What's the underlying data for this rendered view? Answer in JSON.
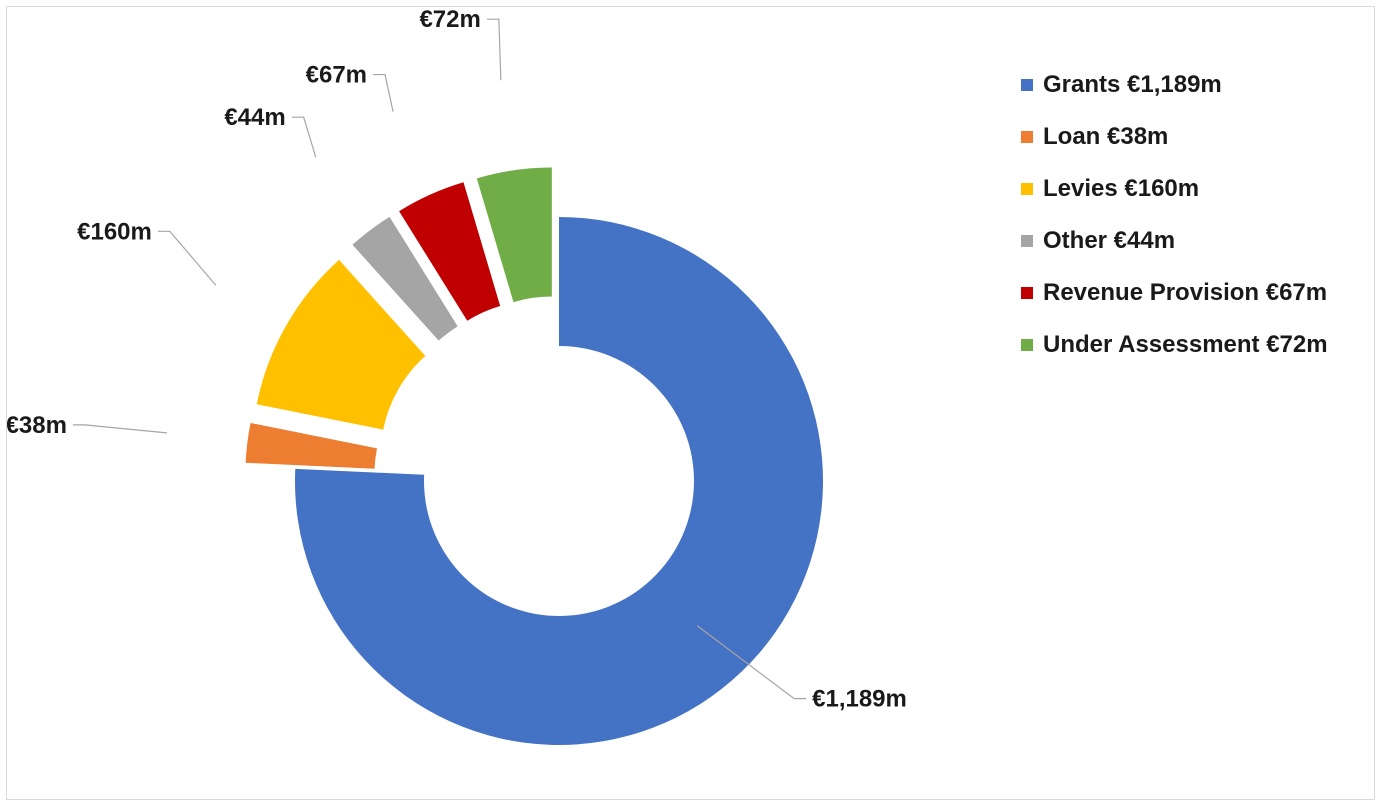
{
  "chart_data": {
    "type": "pie",
    "subtype": "exploded-donut",
    "categories": [
      "Grants",
      "Loan",
      "Levies",
      "Other",
      "Revenue Provision",
      "Under Assessment"
    ],
    "values": [
      1189,
      38,
      160,
      44,
      67,
      72
    ],
    "unit": "€m",
    "data_labels": [
      "€1,189m",
      "€38m",
      "€160m",
      "€44m",
      "€67m",
      "€72m"
    ],
    "legend_labels": [
      "Grants €1,189m",
      "Loan €38m",
      "Levies €160m",
      "Other €44m",
      "Revenue Provision €67m",
      "Under Assessment €72m"
    ],
    "colors": [
      "#4472C4",
      "#ED7D31",
      "#FFC000",
      "#A5A5A5",
      "#C00000",
      "#70AD47"
    ],
    "legend_position": "right",
    "title": ""
  }
}
